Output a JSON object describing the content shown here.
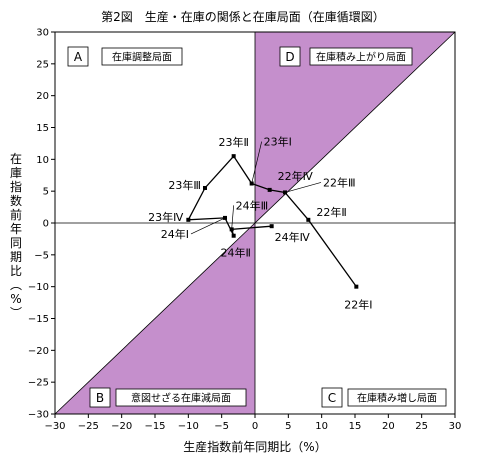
{
  "chart_data": {
    "type": "line",
    "title": "第2図　生産・在庫の関係と在庫局面（在庫循環図）",
    "xlabel": "生産指数前年同期比（%）",
    "ylabel": "在庫指数前年同期比（%）",
    "xlim": [
      -30,
      30
    ],
    "ylim": [
      -30,
      30
    ],
    "xticks": [
      -30,
      -25,
      -20,
      -15,
      -10,
      -5,
      0,
      5,
      10,
      15,
      20,
      25,
      30
    ],
    "yticks": [
      -30,
      -25,
      -20,
      -15,
      -10,
      -5,
      0,
      5,
      10,
      15,
      20,
      25,
      30
    ],
    "grid": false,
    "reference_lines": [
      "x=0",
      "y=0",
      "y=x"
    ],
    "shade_color": "#c58fcc",
    "quadrants": [
      {
        "letter": "A",
        "label": "在庫調整局面"
      },
      {
        "letter": "D",
        "label": "在庫積み上がり局面"
      },
      {
        "letter": "B",
        "label": "意図せざる在庫減局面"
      },
      {
        "letter": "C",
        "label": "在庫積み増し局面"
      }
    ],
    "points": [
      {
        "label": "22年Ⅰ",
        "x": 15.2,
        "y": -10.0
      },
      {
        "label": "22年Ⅱ",
        "x": 8.0,
        "y": 0.5
      },
      {
        "label": "22年Ⅲ",
        "x": 4.5,
        "y": 4.8
      },
      {
        "label": "22年Ⅳ",
        "x": 2.2,
        "y": 5.2
      },
      {
        "label": "23年Ⅰ",
        "x": -0.5,
        "y": 6.2
      },
      {
        "label": "23年Ⅱ",
        "x": -3.2,
        "y": 10.5
      },
      {
        "label": "23年Ⅲ",
        "x": -7.5,
        "y": 5.5
      },
      {
        "label": "23年Ⅳ",
        "x": -10.0,
        "y": 0.5
      },
      {
        "label": "24年Ⅰ",
        "x": -4.5,
        "y": 0.8
      },
      {
        "label": "24年Ⅱ",
        "x": -3.2,
        "y": -2.0
      },
      {
        "label": "24年Ⅲ",
        "x": -3.5,
        "y": -1.0
      },
      {
        "label": "24年Ⅳ",
        "x": 2.5,
        "y": -0.5
      }
    ]
  }
}
